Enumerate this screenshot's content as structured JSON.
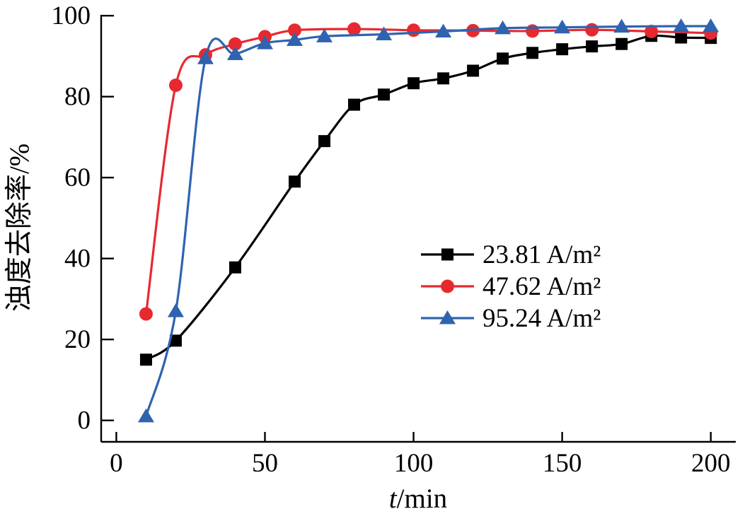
{
  "figure": {
    "background": "#ffffff",
    "axis_color": "#000000"
  },
  "chart_data": {
    "type": "line",
    "title": "",
    "xlabel_parts": [
      "t",
      "/min"
    ],
    "ylabel": "浊度去除率/%",
    "x_ticks": [
      0,
      50,
      100,
      150,
      200
    ],
    "y_ticks": [
      0,
      20,
      40,
      60,
      80,
      100
    ],
    "xlim": [
      -5.1,
      208.4
    ],
    "ylim": [
      -5.3,
      100.2
    ],
    "grid": false,
    "legend_position": "center-right",
    "series": [
      {
        "name": "23.81 A/m²",
        "color": "#000000",
        "marker": "square",
        "x": [
          10,
          20,
          40,
          60,
          70,
          80,
          90,
          100,
          110,
          120,
          130,
          140,
          150,
          160,
          170,
          180,
          190,
          200
        ],
        "y": [
          15,
          19.7,
          37.8,
          59,
          69,
          78,
          80.5,
          83.3,
          84.5,
          86.4,
          89.4,
          90.8,
          91.7,
          92.4,
          93,
          95,
          94.6,
          94.5
        ]
      },
      {
        "name": "47.62 A/m²",
        "color": "#e7292f",
        "marker": "circle",
        "x": [
          10,
          20,
          30,
          40,
          50,
          60,
          80,
          100,
          120,
          140,
          160,
          180,
          200
        ],
        "y": [
          26.3,
          82.8,
          90.3,
          93,
          94.8,
          96.4,
          96.7,
          96.4,
          96.3,
          96.2,
          96.5,
          96.1,
          95.7
        ]
      },
      {
        "name": "95.24 A/m²",
        "color": "#2f63b0",
        "marker": "triangle-up",
        "x": [
          10,
          20,
          30,
          40,
          50,
          60,
          70,
          90,
          110,
          130,
          150,
          170,
          190,
          200
        ],
        "y": [
          1,
          27,
          89.5,
          90.5,
          93.2,
          94,
          94.9,
          95.4,
          96.1,
          96.9,
          97.1,
          97.3,
          97.4,
          97.4
        ]
      }
    ]
  }
}
